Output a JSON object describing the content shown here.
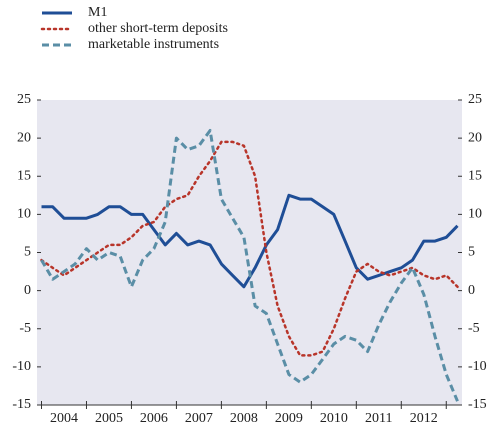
{
  "chart_data": {
    "type": "line",
    "x": [
      2004,
      2004.25,
      2004.5,
      2004.75,
      2005,
      2005.25,
      2005.5,
      2005.75,
      2006,
      2006.25,
      2006.5,
      2006.75,
      2007,
      2007.25,
      2007.5,
      2007.75,
      2008,
      2008.25,
      2008.5,
      2008.75,
      2009,
      2009.25,
      2009.5,
      2009.75,
      2010,
      2010.25,
      2010.5,
      2010.75,
      2011,
      2011.25,
      2011.5,
      2011.75,
      2012,
      2012.25,
      2012.5,
      2012.75,
      2013,
      2013.25
    ],
    "series": [
      {
        "name": "M1",
        "color": "#1f4e96",
        "style": "solid",
        "values": [
          11,
          11,
          9.5,
          9.5,
          9.5,
          10,
          11,
          11,
          10,
          10,
          8,
          6,
          7.5,
          6,
          6.5,
          6,
          3.5,
          2,
          0.5,
          3,
          6,
          8,
          12.5,
          12,
          12,
          11,
          10,
          6.5,
          3,
          1.5,
          2,
          2.5,
          3,
          4,
          6.5,
          6.5,
          7,
          8.5
        ]
      },
      {
        "name": "other short-term deposits",
        "color": "#b8352a",
        "style": "dotted",
        "values": [
          4,
          3,
          2,
          3,
          4,
          5,
          6,
          6,
          7,
          8.5,
          9,
          11,
          12,
          12.5,
          15,
          17,
          19.5,
          19.5,
          19,
          15,
          5,
          -2,
          -6,
          -8.5,
          -8.5,
          -8,
          -5,
          -1,
          2.5,
          3.5,
          2.5,
          2,
          2.5,
          3,
          2,
          1.5,
          2,
          0.5
        ]
      },
      {
        "name": "marketable instruments",
        "color": "#5a8ea6",
        "style": "dashed",
        "values": [
          4,
          1.5,
          2.5,
          3.5,
          5.5,
          4,
          5,
          4.5,
          0.5,
          4,
          5.5,
          9,
          20,
          18.5,
          19,
          21,
          12,
          9.5,
          7,
          -2,
          -3,
          -7,
          -11,
          -12,
          -11,
          -9,
          -7,
          -6,
          -6.5,
          -8,
          -4.5,
          -1.5,
          1,
          3,
          -0.5,
          -6,
          -11,
          -14.5
        ]
      }
    ],
    "xlim": [
      2003.9,
      2013.35
    ],
    "xticks": [
      {
        "value": 2004.5,
        "label": "2004"
      },
      {
        "value": 2005.5,
        "label": "2005"
      },
      {
        "value": 2006.5,
        "label": "2006"
      },
      {
        "value": 2007.5,
        "label": "2007"
      },
      {
        "value": 2008.5,
        "label": "2008"
      },
      {
        "value": 2009.5,
        "label": "2009"
      },
      {
        "value": 2010.5,
        "label": "2010"
      },
      {
        "value": 2011.5,
        "label": "2011"
      },
      {
        "value": 2012.5,
        "label": "2012"
      }
    ],
    "ylim": [
      -15,
      25
    ],
    "yticks": [
      -15,
      -10,
      -5,
      0,
      5,
      10,
      15,
      20,
      25
    ],
    "y2lim": [
      -15,
      25
    ],
    "y2ticks": [
      -15,
      -10,
      -5,
      0,
      5,
      10,
      15,
      20,
      25
    ]
  }
}
